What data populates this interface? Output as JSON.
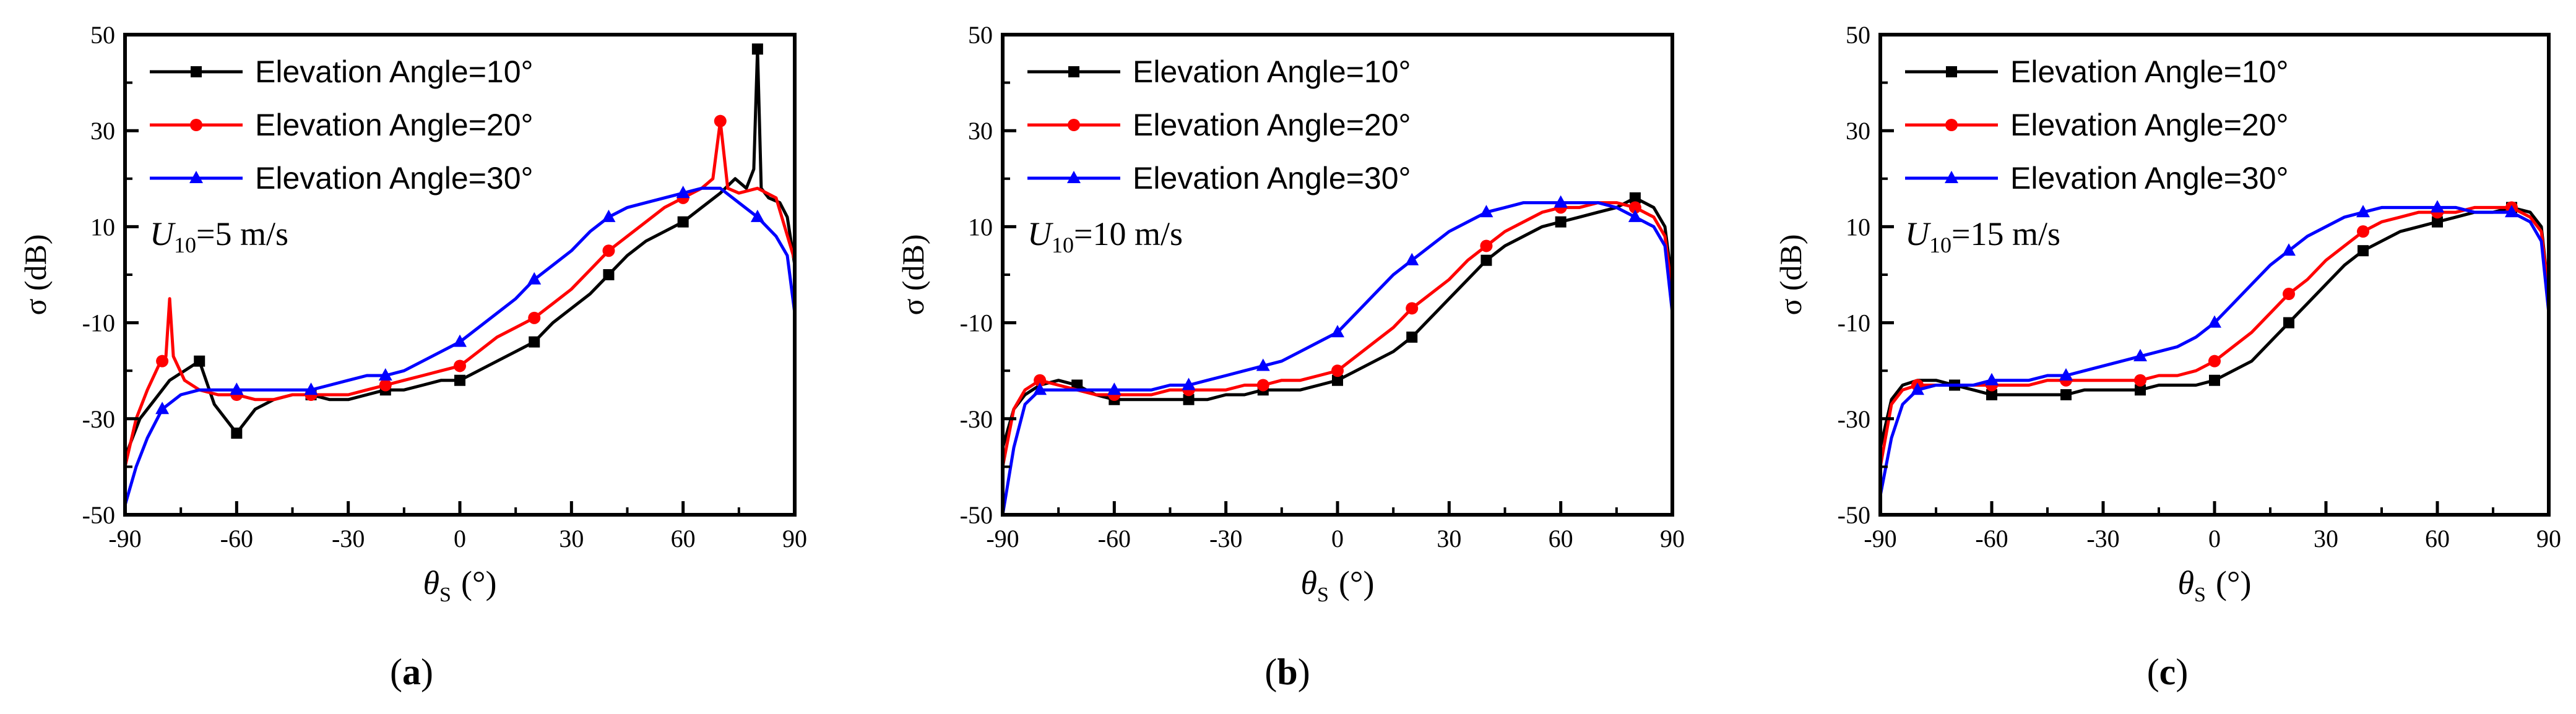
{
  "chart_data": [
    {
      "type": "line",
      "panel_label": "(a)",
      "panel_letter": "a",
      "wind_label": {
        "symbol": "U",
        "subscript": "10",
        "value": "=5 m/s"
      },
      "xlabel": {
        "symbol": "θ",
        "subscript": "S",
        "unit": "(°)"
      },
      "ylabel": "σ  (dB)",
      "xlim": [
        -90,
        90
      ],
      "ylim": [
        -50,
        50
      ],
      "xticks": [
        "-90",
        "-60",
        "-30",
        "0",
        "30",
        "60",
        "90"
      ],
      "yticks": [
        "-50",
        "-30",
        "-10",
        "10",
        "30",
        "50"
      ],
      "legend_position": "top-left",
      "series": [
        {
          "name": "Elevation Angle=10°",
          "color": "#000000",
          "marker": "square",
          "x": [
            -90,
            -86,
            -82,
            -78,
            -74,
            -70,
            -66,
            -60,
            -55,
            -50,
            -45,
            -40,
            -35,
            -30,
            -25,
            -20,
            -15,
            -10,
            -5,
            0,
            5,
            10,
            15,
            20,
            25,
            30,
            35,
            40,
            45,
            50,
            55,
            60,
            65,
            70,
            74,
            77,
            79,
            80,
            81,
            83,
            86,
            88,
            90
          ],
          "y": [
            -38,
            -30,
            -26,
            -22,
            -20,
            -18,
            -27,
            -33,
            -28,
            -26,
            -25,
            -25,
            -26,
            -26,
            -25,
            -24,
            -24,
            -23,
            -22,
            -22,
            -20,
            -18,
            -16,
            -14,
            -10,
            -7,
            -4,
            0,
            4,
            7,
            9,
            11,
            14,
            17,
            20,
            18,
            22,
            47,
            18,
            16,
            15,
            12,
            2
          ],
          "markers_x": [
            -70,
            -60,
            -40,
            -20,
            0,
            20,
            40,
            60,
            80
          ]
        },
        {
          "name": "Elevation Angle=20°",
          "color": "#ff0000",
          "marker": "circle",
          "x": [
            -90,
            -87,
            -84,
            -81,
            -79,
            -78,
            -77,
            -74,
            -70,
            -65,
            -60,
            -55,
            -50,
            -45,
            -40,
            -35,
            -30,
            -25,
            -20,
            -15,
            -10,
            -5,
            0,
            5,
            10,
            15,
            20,
            25,
            30,
            35,
            40,
            45,
            50,
            55,
            60,
            65,
            68,
            70,
            72,
            75,
            80,
            85,
            90
          ],
          "y": [
            -40,
            -30,
            -24,
            -19,
            -17,
            -5,
            -17,
            -22,
            -24,
            -25,
            -25,
            -26,
            -26,
            -25,
            -25,
            -25,
            -25,
            -24,
            -23,
            -22,
            -21,
            -20,
            -19,
            -16,
            -13,
            -11,
            -9,
            -6,
            -3,
            1,
            5,
            8,
            11,
            14,
            16,
            18,
            20,
            32,
            18,
            17,
            18,
            16,
            3
          ],
          "markers_x": [
            -80,
            -60,
            -40,
            -20,
            0,
            20,
            40,
            60,
            70
          ]
        },
        {
          "name": "Elevation Angle=30°",
          "color": "#0000ff",
          "marker": "triangle",
          "x": [
            -90,
            -87,
            -84,
            -80,
            -75,
            -70,
            -65,
            -60,
            -55,
            -50,
            -45,
            -40,
            -35,
            -30,
            -25,
            -20,
            -15,
            -10,
            -5,
            0,
            5,
            10,
            15,
            20,
            25,
            30,
            35,
            40,
            45,
            50,
            55,
            60,
            65,
            70,
            75,
            80,
            85,
            88,
            90
          ],
          "y": [
            -48,
            -40,
            -34,
            -28,
            -25,
            -24,
            -24,
            -24,
            -24,
            -24,
            -24,
            -24,
            -23,
            -22,
            -21,
            -21,
            -20,
            -18,
            -16,
            -14,
            -11,
            -8,
            -5,
            -1,
            2,
            5,
            9,
            12,
            14,
            15,
            16,
            17,
            18,
            18,
            15,
            12,
            8,
            4,
            -8
          ],
          "markers_x": [
            -80,
            -60,
            -40,
            -20,
            0,
            20,
            40,
            60,
            80
          ]
        }
      ]
    },
    {
      "type": "line",
      "panel_label": "(b)",
      "panel_letter": "b",
      "wind_label": {
        "symbol": "U",
        "subscript": "10",
        "value": "=10 m/s"
      },
      "xlabel": {
        "symbol": "θ",
        "subscript": "S",
        "unit": "(°)"
      },
      "ylabel": "σ  (dB)",
      "xlim": [
        -90,
        90
      ],
      "ylim": [
        -50,
        50
      ],
      "xticks": [
        "-90",
        "-60",
        "-30",
        "0",
        "30",
        "60",
        "90"
      ],
      "yticks": [
        "-50",
        "-30",
        "-10",
        "10",
        "30",
        "50"
      ],
      "legend_position": "top-left",
      "series": [
        {
          "name": "Elevation Angle=10°",
          "color": "#000000",
          "marker": "square",
          "x": [
            -90,
            -87,
            -84,
            -80,
            -75,
            -70,
            -65,
            -60,
            -55,
            -50,
            -45,
            -40,
            -35,
            -30,
            -25,
            -20,
            -15,
            -10,
            -5,
            0,
            5,
            10,
            15,
            20,
            25,
            30,
            35,
            40,
            45,
            50,
            55,
            60,
            65,
            70,
            75,
            80,
            85,
            88,
            90
          ],
          "y": [
            -36,
            -28,
            -25,
            -23,
            -22,
            -23,
            -25,
            -26,
            -26,
            -26,
            -26,
            -26,
            -26,
            -25,
            -25,
            -24,
            -24,
            -24,
            -23,
            -22,
            -20,
            -18,
            -16,
            -13,
            -9,
            -5,
            -1,
            3,
            6,
            8,
            10,
            11,
            12,
            13,
            14,
            16,
            14,
            10,
            -2
          ],
          "markers_x": [
            -70,
            -60,
            -40,
            -20,
            0,
            20,
            40,
            60,
            80
          ]
        },
        {
          "name": "Elevation Angle=20°",
          "color": "#ff0000",
          "marker": "circle",
          "x": [
            -90,
            -87,
            -84,
            -80,
            -75,
            -70,
            -65,
            -60,
            -55,
            -50,
            -45,
            -40,
            -35,
            -30,
            -25,
            -20,
            -15,
            -10,
            -5,
            0,
            5,
            10,
            15,
            20,
            25,
            30,
            35,
            40,
            45,
            50,
            55,
            60,
            65,
            70,
            75,
            80,
            85,
            88,
            90
          ],
          "y": [
            -40,
            -28,
            -24,
            -22,
            -23,
            -24,
            -25,
            -25,
            -25,
            -25,
            -24,
            -24,
            -24,
            -24,
            -23,
            -23,
            -22,
            -22,
            -21,
            -20,
            -17,
            -14,
            -11,
            -7,
            -4,
            -1,
            3,
            6,
            9,
            11,
            13,
            14,
            14,
            15,
            15,
            14,
            12,
            8,
            -4
          ],
          "markers_x": [
            -80,
            -60,
            -40,
            -20,
            0,
            20,
            40,
            60,
            80
          ]
        },
        {
          "name": "Elevation Angle=30°",
          "color": "#0000ff",
          "marker": "triangle",
          "x": [
            -90,
            -87,
            -84,
            -80,
            -75,
            -70,
            -65,
            -60,
            -55,
            -50,
            -45,
            -40,
            -35,
            -30,
            -25,
            -20,
            -15,
            -10,
            -5,
            0,
            5,
            10,
            15,
            20,
            25,
            30,
            35,
            40,
            45,
            50,
            55,
            60,
            65,
            70,
            75,
            80,
            85,
            88,
            90
          ],
          "y": [
            -50,
            -36,
            -27,
            -24,
            -24,
            -24,
            -24,
            -24,
            -24,
            -24,
            -23,
            -23,
            -22,
            -21,
            -20,
            -19,
            -18,
            -16,
            -14,
            -12,
            -8,
            -4,
            0,
            3,
            6,
            9,
            11,
            13,
            14,
            15,
            15,
            15,
            15,
            15,
            14,
            12,
            10,
            6,
            -8
          ],
          "markers_x": [
            -80,
            -60,
            -40,
            -20,
            0,
            20,
            40,
            60,
            80
          ]
        }
      ]
    },
    {
      "type": "line",
      "panel_label": "(c)",
      "panel_letter": "c",
      "wind_label": {
        "symbol": "U",
        "subscript": "10",
        "value": "=15 m/s"
      },
      "xlabel": {
        "symbol": "θ",
        "subscript": "S",
        "unit": "(°)"
      },
      "ylabel": "σ  (dB)",
      "xlim": [
        -90,
        90
      ],
      "ylim": [
        -50,
        50
      ],
      "xticks": [
        "-90",
        "-60",
        "-30",
        "0",
        "30",
        "60",
        "90"
      ],
      "yticks": [
        "-50",
        "-30",
        "-10",
        "10",
        "30",
        "50"
      ],
      "legend_position": "top-left",
      "series": [
        {
          "name": "Elevation Angle=10°",
          "color": "#000000",
          "marker": "square",
          "x": [
            -90,
            -87,
            -84,
            -80,
            -75,
            -70,
            -65,
            -60,
            -55,
            -50,
            -45,
            -40,
            -35,
            -30,
            -25,
            -20,
            -15,
            -10,
            -5,
            0,
            5,
            10,
            15,
            20,
            25,
            30,
            35,
            40,
            45,
            50,
            55,
            60,
            65,
            70,
            75,
            80,
            85,
            88,
            90
          ],
          "y": [
            -36,
            -26,
            -23,
            -22,
            -22,
            -23,
            -24,
            -25,
            -25,
            -25,
            -25,
            -25,
            -24,
            -24,
            -24,
            -24,
            -23,
            -23,
            -23,
            -22,
            -20,
            -18,
            -14,
            -10,
            -6,
            -2,
            2,
            5,
            7,
            9,
            10,
            11,
            12,
            13,
            13,
            14,
            13,
            10,
            -4
          ],
          "markers_x": [
            -70,
            -60,
            -40,
            -20,
            0,
            20,
            40,
            60,
            80
          ]
        },
        {
          "name": "Elevation Angle=20°",
          "color": "#ff0000",
          "marker": "circle",
          "x": [
            -90,
            -87,
            -84,
            -80,
            -75,
            -70,
            -65,
            -60,
            -55,
            -50,
            -45,
            -40,
            -35,
            -30,
            -25,
            -20,
            -15,
            -10,
            -5,
            0,
            5,
            10,
            15,
            20,
            25,
            30,
            35,
            40,
            45,
            50,
            55,
            60,
            65,
            70,
            75,
            80,
            85,
            88,
            90
          ],
          "y": [
            -40,
            -27,
            -24,
            -23,
            -23,
            -23,
            -23,
            -23,
            -23,
            -23,
            -22,
            -22,
            -22,
            -22,
            -22,
            -22,
            -21,
            -21,
            -20,
            -18,
            -15,
            -12,
            -8,
            -4,
            -1,
            3,
            6,
            9,
            11,
            12,
            13,
            13,
            13,
            14,
            14,
            14,
            12,
            9,
            -4
          ],
          "markers_x": [
            -80,
            -60,
            -40,
            -20,
            0,
            20,
            40,
            60,
            80
          ]
        },
        {
          "name": "Elevation Angle=30°",
          "color": "#0000ff",
          "marker": "triangle",
          "x": [
            -90,
            -87,
            -84,
            -80,
            -75,
            -70,
            -65,
            -60,
            -55,
            -50,
            -45,
            -40,
            -35,
            -30,
            -25,
            -20,
            -15,
            -10,
            -5,
            0,
            5,
            10,
            15,
            20,
            25,
            30,
            35,
            40,
            45,
            50,
            55,
            60,
            65,
            70,
            75,
            80,
            85,
            88,
            90
          ],
          "y": [
            -46,
            -34,
            -27,
            -24,
            -23,
            -23,
            -23,
            -22,
            -22,
            -22,
            -21,
            -21,
            -20,
            -19,
            -18,
            -17,
            -16,
            -15,
            -13,
            -10,
            -6,
            -2,
            2,
            5,
            8,
            10,
            12,
            13,
            14,
            14,
            14,
            14,
            14,
            13,
            13,
            13,
            11,
            7,
            -8
          ],
          "markers_x": [
            -80,
            -60,
            -40,
            -20,
            0,
            20,
            40,
            60,
            80
          ]
        }
      ]
    }
  ]
}
